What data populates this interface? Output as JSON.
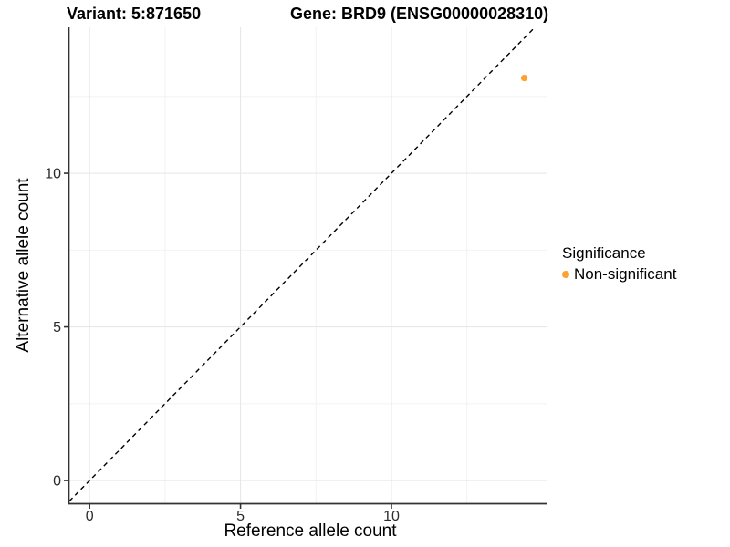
{
  "titles": {
    "variant": "Variant: 5:871650",
    "gene": "Gene: BRD9 (ENSG00000028310)"
  },
  "legend": {
    "title": "Significance",
    "items": [
      {
        "label": "Non-significant",
        "color": "#FFA033",
        "marker": "circle-icon"
      }
    ]
  },
  "chart_data": {
    "type": "scatter",
    "title": "Variant: 5:871650  /  Gene: BRD9 (ENSG00000028310)",
    "xlabel": "Reference allele count",
    "ylabel": "Alternative allele count",
    "xlim": [
      -0.67,
      15.17
    ],
    "ylim": [
      -0.74,
      14.75
    ],
    "x_major_ticks": [
      0,
      5,
      10
    ],
    "y_major_ticks": [
      0,
      5,
      10
    ],
    "x_minor_gridlines": [
      2.5,
      7.5,
      12.5
    ],
    "y_minor_gridlines": [
      2.5,
      7.5,
      12.5
    ],
    "grid": true,
    "legend_position": "right",
    "series": [
      {
        "name": "Non-significant",
        "color": "#FFA033",
        "points": [
          {
            "x": 14.4,
            "y": 13.1
          }
        ]
      }
    ],
    "reference_line": {
      "type": "identity",
      "equation": "y = x",
      "style": "dashed",
      "color": "#000000"
    },
    "style": {
      "axis_line_color": "#333333",
      "tick_label_color": "#2b2b2b",
      "major_grid_color": "#e8e8e8",
      "minor_grid_color": "#f2f2f2",
      "background": "#ffffff"
    }
  }
}
